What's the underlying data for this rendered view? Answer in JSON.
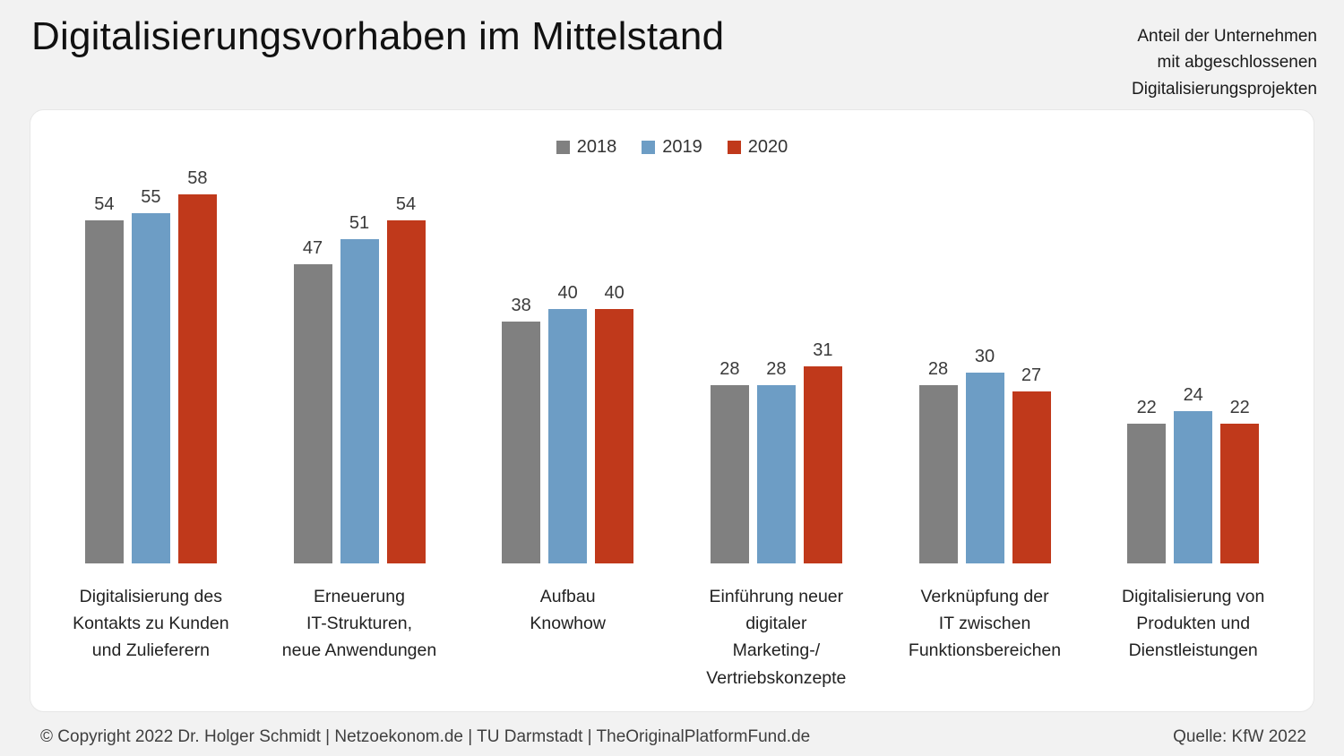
{
  "header": {
    "title": "Digitalisierungsvorhaben im Mittelstand",
    "subtitle": "Anteil der Unternehmen\nmit abgeschlossenen\nDigitalisierungsprojekten"
  },
  "chart_data": {
    "type": "bar",
    "categories": [
      "Digitalisierung des\nKontakts zu Kunden\nund Zulieferern",
      "Erneuerung\nIT-Strukturen,\nneue Anwendungen",
      "Aufbau\nKnowhow",
      "Einführung neuer\ndigitaler\nMarketing-/\nVertriebskonzepte",
      "Verknüpfung der\nIT zwischen\nFunktionsbereichen",
      "Digitalisierung von\nProdukten und\nDienstleistungen"
    ],
    "series": [
      {
        "name": "2018",
        "color": "#808080",
        "values": [
          54,
          47,
          38,
          28,
          28,
          22
        ]
      },
      {
        "name": "2019",
        "color": "#6D9DC5",
        "values": [
          55,
          51,
          40,
          28,
          30,
          24
        ]
      },
      {
        "name": "2020",
        "color": "#C0391B",
        "values": [
          58,
          54,
          40,
          31,
          27,
          22
        ]
      }
    ],
    "ylim": [
      0,
      62
    ],
    "grid": false,
    "value_labels": true,
    "legend_position": "top-center",
    "title": "Digitalisierungsvorhaben im Mittelstand",
    "xlabel": "",
    "ylabel": ""
  },
  "footer": {
    "copyright": "© Copyright 2022 Dr. Holger Schmidt | Netzoekonom.de | TU Darmstadt | TheOriginalPlatformFund.de",
    "source": "Quelle: KfW 2022"
  }
}
